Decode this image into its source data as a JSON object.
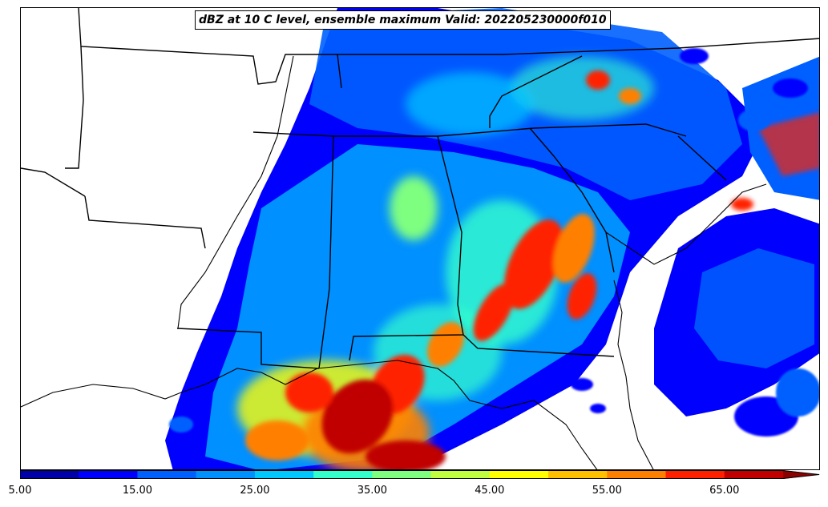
{
  "title": "dBZ at 10 C level, ensemble maximum Valid: 202205230000f010",
  "colorbar": {
    "levels": [
      5,
      10,
      15,
      20,
      25,
      30,
      35,
      40,
      45,
      50,
      55,
      60,
      65,
      70
    ],
    "colors": [
      "#0000a8",
      "#0000ff",
      "#0060ff",
      "#0090ff",
      "#00c8ff",
      "#33ffcc",
      "#7fff80",
      "#c0ff40",
      "#ffff00",
      "#ffc000",
      "#ff8000",
      "#ff2000",
      "#c00000"
    ],
    "extend_color": "#8b0000",
    "tick_labels": [
      "5.00",
      "15.00",
      "25.00",
      "35.00",
      "45.00",
      "55.00",
      "65.00"
    ]
  },
  "colors": {
    "border": "#000000",
    "background": "#ffffff"
  }
}
